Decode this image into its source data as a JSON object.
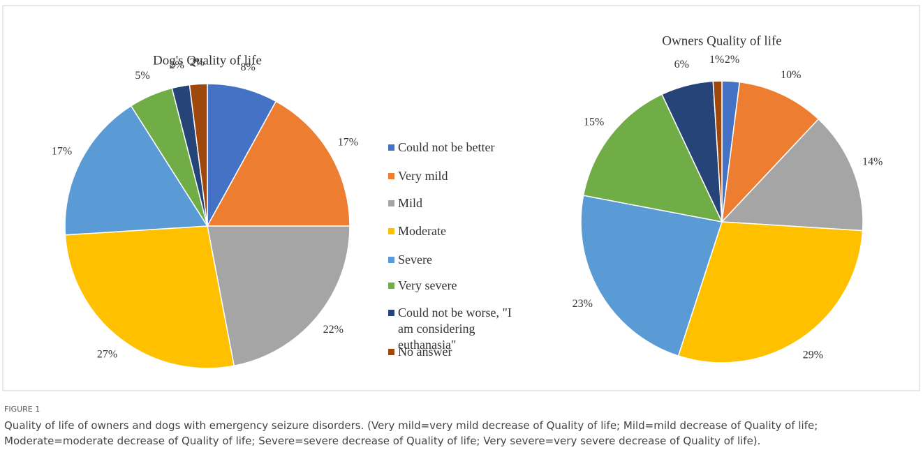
{
  "legend": {
    "categories": [
      "Could not be better",
      "Very mild",
      "Mild",
      "Moderate",
      "Severe",
      "Very severe",
      "Could not be worse, \"I am considering euthanasia\"",
      "No answer"
    ],
    "colors": [
      "#4472c4",
      "#ed7d31",
      "#a5a5a5",
      "#ffc000",
      "#5b9bd5",
      "#70ad47",
      "#264478",
      "#9e480e"
    ]
  },
  "chart_data": [
    {
      "type": "pie",
      "title": "Dog's Quality of life",
      "values": [
        8,
        17,
        22,
        27,
        17,
        5,
        2,
        2
      ],
      "value_labels": [
        "8%",
        "17%",
        "22%",
        "27%",
        "17%",
        "5%",
        "2%",
        "2%"
      ]
    },
    {
      "type": "pie",
      "title": "Owners Quality of life",
      "values": [
        2,
        10,
        14,
        29,
        23,
        15,
        6,
        1
      ],
      "value_labels": [
        "2%",
        "10%",
        "14%",
        "29%",
        "23%",
        "15%",
        "6%",
        "1%"
      ]
    }
  ],
  "caption": {
    "label": "FIGURE 1",
    "text": "Quality of life of owners and dogs with emergency seizure disorders. (Very mild=very mild decrease of Quality of life; Mild=mild decrease of Quality of life; Moderate=moderate decrease of Quality of life; Severe=severe decrease of Quality of life; Very severe=very severe decrease of Quality of life)."
  }
}
